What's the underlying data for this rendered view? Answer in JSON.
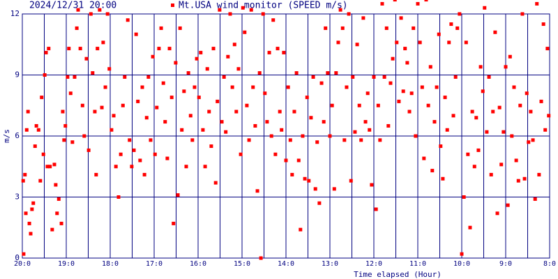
{
  "chart_data": {
    "type": "scatter",
    "title": "2024/12/31 20:00",
    "xlabel": "Time elapsed (Hour)",
    "ylabel": "m/s",
    "xlim": [
      0,
      12
    ],
    "ylim": [
      0,
      12
    ],
    "grid": true,
    "grid_color": "#000080",
    "xticks": [
      {
        "value": 0,
        "label": "20:0"
      },
      {
        "value": 1,
        "label": "19:0"
      },
      {
        "value": 2,
        "label": "18:0"
      },
      {
        "value": 3,
        "label": "17:0"
      },
      {
        "value": 4,
        "label": "16:0"
      },
      {
        "value": 5,
        "label": "15:0"
      },
      {
        "value": 6,
        "label": "14:0"
      },
      {
        "value": 7,
        "label": "13:0"
      },
      {
        "value": 8,
        "label": "12:0"
      },
      {
        "value": 9,
        "label": "11:0"
      },
      {
        "value": 10,
        "label": "10:0"
      },
      {
        "value": 11,
        "label": "9:0"
      },
      {
        "value": 12,
        "label": "8:0"
      }
    ],
    "x_minor_ticks": [
      0.5,
      1.5,
      2.5,
      3.5,
      4.5,
      5.5,
      6.5,
      7.5,
      8.5,
      9.5,
      10.5,
      11.5
    ],
    "yticks": [
      0,
      3,
      6,
      9,
      12
    ],
    "series": [
      {
        "name": "Mt.USA wind monitor (SPEED m/s)",
        "color": "#ff0000",
        "x": [
          0.02,
          0.03,
          0.06,
          0.1,
          0.13,
          0.08,
          0.16,
          0.19,
          0.22,
          0.25,
          0.29,
          0.32,
          0.37,
          0.41,
          0.44,
          0.48,
          0.51,
          0.54,
          0.57,
          0.6,
          0.63,
          0.68,
          0.73,
          0.76,
          0.79,
          0.83,
          0.89,
          0.92,
          0.95,
          0.98,
          1.03,
          1.06,
          1.1,
          1.14,
          1.19,
          1.24,
          1.27,
          1.32,
          1.37,
          1.41,
          1.46,
          1.51,
          1.56,
          1.6,
          1.65,
          1.68,
          1.71,
          1.76,
          1.81,
          1.84,
          1.89,
          1.94,
          1.98,
          2.03,
          2.08,
          2.13,
          2.19,
          2.24,
          2.29,
          2.33,
          2.4,
          2.44,
          2.49,
          2.54,
          2.59,
          2.63,
          2.68,
          2.73,
          2.78,
          2.83,
          2.87,
          2.92,
          2.97,
          3.02,
          3.06,
          3.11,
          3.16,
          3.21,
          3.25,
          3.3,
          3.35,
          3.4,
          3.44,
          3.49,
          3.54,
          3.59,
          3.63,
          3.68,
          3.73,
          3.78,
          3.83,
          3.87,
          3.92,
          3.97,
          4.02,
          4.06,
          4.11,
          4.16,
          4.21,
          4.25,
          4.3,
          4.35,
          4.4,
          4.44,
          4.49,
          4.54,
          4.59,
          4.63,
          4.68,
          4.73,
          4.78,
          4.83,
          4.87,
          4.92,
          4.97,
          5.02,
          5.06,
          5.11,
          5.16,
          5.21,
          5.25,
          5.3,
          5.35,
          5.4,
          5.43,
          5.48,
          5.52,
          5.57,
          5.62,
          5.67,
          5.71,
          5.76,
          5.81,
          5.86,
          5.9,
          5.95,
          6.0,
          6.05,
          6.1,
          6.14,
          6.19,
          6.24,
          6.29,
          6.33,
          6.38,
          6.43,
          6.48,
          6.52,
          6.57,
          6.62,
          6.67,
          6.71,
          6.76,
          6.81,
          6.86,
          6.9,
          6.95,
          7.0,
          7.05,
          7.1,
          7.14,
          7.19,
          7.24,
          7.29,
          7.33,
          7.38,
          7.43,
          7.48,
          7.52,
          7.57,
          7.62,
          7.67,
          7.71,
          7.76,
          7.81,
          7.86,
          7.9,
          7.95,
          8.0,
          8.05,
          8.1,
          8.14,
          8.19,
          8.24,
          8.29,
          8.33,
          8.38,
          8.43,
          8.48,
          8.52,
          8.57,
          8.62,
          8.67,
          8.71,
          8.76,
          8.81,
          8.86,
          8.9,
          8.95,
          9.0,
          9.05,
          9.1,
          9.14,
          9.19,
          9.24,
          9.29,
          9.33,
          9.38,
          9.43,
          9.48,
          9.52,
          9.57,
          9.62,
          9.67,
          9.71,
          9.76,
          9.81,
          9.86,
          9.9,
          9.95,
          10.0,
          10.05,
          10.1,
          10.14,
          10.19,
          10.24,
          10.29,
          10.33,
          10.38,
          10.43,
          10.48,
          10.52,
          10.57,
          10.62,
          10.67,
          10.71,
          10.76,
          10.81,
          10.86,
          10.9,
          10.95,
          11.0,
          11.05,
          11.1,
          11.14,
          11.19,
          11.24,
          11.29,
          11.33,
          11.38,
          11.43,
          11.48,
          11.52,
          11.57,
          11.62,
          11.67,
          11.71,
          11.76,
          11.81,
          11.86,
          11.9,
          11.95,
          11.98
        ],
        "values": [
          3.8,
          0.2,
          4.1,
          6.3,
          7.2,
          2.2,
          1.7,
          1.2,
          2.4,
          2.7,
          5.5,
          6.5,
          6.3,
          3.8,
          7.9,
          5.1,
          9.0,
          10.1,
          4.5,
          10.3,
          4.5,
          1.4,
          4.6,
          3.6,
          2.2,
          2.9,
          1.7,
          7.2,
          5.8,
          6.5,
          8.9,
          10.3,
          8.1,
          5.7,
          8.9,
          11.3,
          12.2,
          10.3,
          7.5,
          6.0,
          9.8,
          5.3,
          12.0,
          9.1,
          7.2,
          4.1,
          10.3,
          12.2,
          7.4,
          10.6,
          8.4,
          12.0,
          9.3,
          6.3,
          7.0,
          4.5,
          3.0,
          5.1,
          7.5,
          8.9,
          11.7,
          5.8,
          4.5,
          5.3,
          11.0,
          7.7,
          4.8,
          8.4,
          4.1,
          6.9,
          8.9,
          5.8,
          9.9,
          5.1,
          7.4,
          10.3,
          11.3,
          8.6,
          6.7,
          4.9,
          10.3,
          7.9,
          1.7,
          9.6,
          3.1,
          11.3,
          6.3,
          8.2,
          4.5,
          9.1,
          7.0,
          5.8,
          8.4,
          9.8,
          7.9,
          10.1,
          6.3,
          4.5,
          9.3,
          7.2,
          5.5,
          10.3,
          3.7,
          7.7,
          12.2,
          6.7,
          8.9,
          6.2,
          9.9,
          12.0,
          8.4,
          10.5,
          7.2,
          9.3,
          5.1,
          12.3,
          11.1,
          7.5,
          5.8,
          12.2,
          8.4,
          6.5,
          3.3,
          9.1,
          0.0,
          12.0,
          8.1,
          6.7,
          10.1,
          6.0,
          11.7,
          5.1,
          10.3,
          7.2,
          6.3,
          10.1,
          4.8,
          8.4,
          5.8,
          4.1,
          7.2,
          9.1,
          4.8,
          1.4,
          6.0,
          3.9,
          7.9,
          3.8,
          6.9,
          8.9,
          3.4,
          5.7,
          2.7,
          8.6,
          6.7,
          11.3,
          9.1,
          6.0,
          7.5,
          3.4,
          9.1,
          10.6,
          12.2,
          11.3,
          5.8,
          8.4,
          12.0,
          3.8,
          8.9,
          6.2,
          10.5,
          7.5,
          5.8,
          11.8,
          6.7,
          8.1,
          6.3,
          3.6,
          8.9,
          2.4,
          7.5,
          5.8,
          12.5,
          8.9,
          11.3,
          6.5,
          8.6,
          9.8,
          12.7,
          10.6,
          7.7,
          11.8,
          8.2,
          10.3,
          9.6,
          7.2,
          8.1,
          11.3,
          6.0,
          12.5,
          10.6,
          8.4,
          4.9,
          12.7,
          7.5,
          9.4,
          4.3,
          6.7,
          8.4,
          11.0,
          5.5,
          3.9,
          7.9,
          6.3,
          10.6,
          11.5,
          7.0,
          8.9,
          11.3,
          12.0,
          0.2,
          3.0,
          10.6,
          5.1,
          1.5,
          7.2,
          4.5,
          6.9,
          5.3,
          9.4,
          8.2,
          12.3,
          6.2,
          8.9,
          4.1,
          7.2,
          11.1,
          2.2,
          7.4,
          4.6,
          6.2,
          9.4,
          2.6,
          9.9,
          6.0,
          8.4,
          4.8,
          3.8,
          7.5,
          12.0,
          3.9,
          8.1,
          5.7,
          7.2,
          5.8,
          2.9,
          12.5,
          4.1,
          7.7,
          11.5,
          6.3,
          10.3,
          7.0
        ]
      }
    ]
  }
}
